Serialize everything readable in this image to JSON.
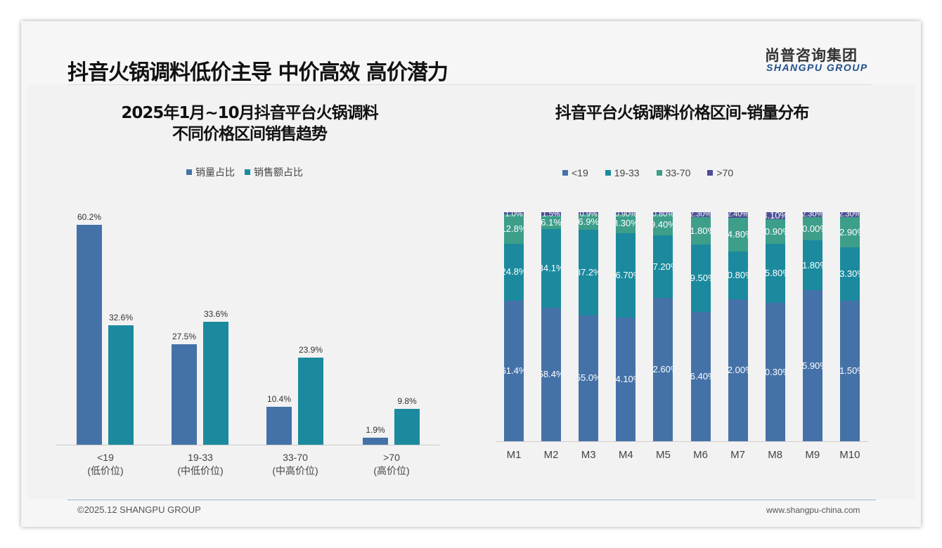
{
  "header": {
    "title": "抖音火锅调料低价主导 中价高效 高价潜力",
    "logo_cn": "尚普咨询集团",
    "logo_en": "SHANGPU GROUP"
  },
  "footer": {
    "copyright": "©2025.12 SHANGPU GROUP",
    "website": "www.shangpu-china.com"
  },
  "colors": {
    "c1": "#4472a8",
    "c2": "#1b8a9e",
    "c3": "#3d9e8a",
    "c4": "#4b4f96"
  },
  "chart_data": [
    {
      "type": "bar",
      "title_line1": "2025年1月~10月抖音平台火锅调料",
      "title_line2": "不同价格区间销售趋势",
      "categories": [
        "<19",
        "19-33",
        "33-70",
        ">70"
      ],
      "category_sub": [
        "(低价位)",
        "(中低价位)",
        "(中高价位)",
        "(高价位)"
      ],
      "series": [
        {
          "name": "销量占比",
          "values": [
            60.2,
            27.5,
            10.4,
            1.9
          ],
          "labels": [
            "60.2%",
            "27.5%",
            "10.4%",
            "1.9%"
          ]
        },
        {
          "name": "销售额占比",
          "values": [
            32.6,
            33.6,
            23.9,
            9.8
          ],
          "labels": [
            "32.6%",
            "33.6%",
            "23.9%",
            "9.8%"
          ]
        }
      ],
      "legend": "top-center",
      "ylim": [
        0,
        65
      ]
    },
    {
      "type": "bar",
      "stacked": true,
      "title": "抖音平台火锅调料价格区间-销量分布",
      "categories": [
        "M1",
        "M2",
        "M3",
        "M4",
        "M5",
        "M6",
        "M7",
        "M8",
        "M9",
        "M10"
      ],
      "series": [
        {
          "name": "<19",
          "values": [
            61.4,
            58.4,
            55.0,
            54.1,
            62.6,
            56.4,
            62.0,
            60.3,
            65.9,
            61.5
          ],
          "labels": [
            "61.4%",
            "58.4%",
            "55.0%",
            "54.10%",
            "62.60%",
            "56.40%",
            "62.00%",
            "60.30%",
            "65.90%",
            "61.50%"
          ]
        },
        {
          "name": "19-33",
          "values": [
            24.8,
            34.1,
            37.2,
            36.7,
            27.2,
            29.5,
            20.8,
            25.8,
            21.8,
            23.3
          ],
          "labels": [
            "24.8%",
            "34.1%",
            "37.2%",
            "36.70%",
            "27.20%",
            "29.50%",
            "20.80%",
            "25.80%",
            "21.80%",
            "23.30%"
          ]
        },
        {
          "name": "33-70",
          "values": [
            12.8,
            6.1,
            6.9,
            8.3,
            9.4,
            11.8,
            14.8,
            10.9,
            10.0,
            12.9
          ],
          "labels": [
            "12.8%",
            "6.1%",
            "6.9%",
            "8.30%",
            "9.40%",
            "11.80%",
            "14.80%",
            "10.90%",
            "10.00%",
            "12.90%"
          ]
        },
        {
          "name": ">70",
          "values": [
            1.0,
            1.5,
            0.9,
            0.9,
            0.8,
            2.3,
            2.4,
            3.1,
            2.3,
            2.3
          ],
          "labels": [
            "1.0%",
            "1.5%",
            "0.9%",
            "0.90%",
            "0.80%",
            "2.30%",
            "2.40%",
            "3.10%",
            "2.30%",
            "2.30%"
          ]
        }
      ],
      "legend": "top-center",
      "ylim": [
        0,
        100
      ]
    }
  ]
}
